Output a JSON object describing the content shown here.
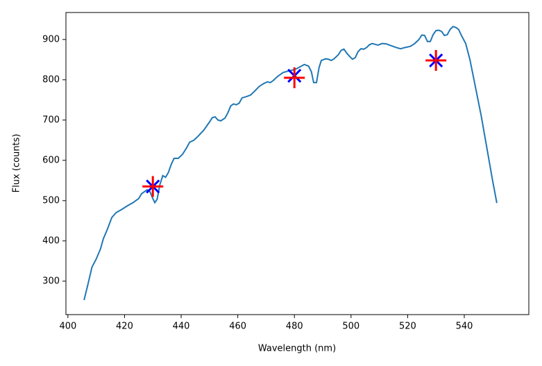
{
  "chart_data": {
    "type": "line",
    "xlabel": "Wavelength (nm)",
    "ylabel": "Flux (counts)",
    "xlim": [
      399.3,
      562.8
    ],
    "ylim": [
      217,
      967
    ],
    "xticks": [
      400,
      420,
      440,
      460,
      480,
      500,
      520,
      540
    ],
    "yticks": [
      300,
      400,
      500,
      600,
      700,
      800,
      900
    ],
    "series": [
      {
        "color": "#1f77b4",
        "x": [
          405.7,
          407,
          408.5,
          410,
          411.5,
          412.5,
          414,
          415.5,
          417,
          419,
          421,
          423,
          425,
          426,
          428,
          429,
          430,
          430.7,
          431.5,
          432.5,
          433.5,
          434.5,
          435.5,
          436.5,
          437.5,
          439,
          440.5,
          442,
          443,
          444.5,
          446,
          448,
          450,
          451,
          452,
          453,
          454,
          455.5,
          456.5,
          457.5,
          458.5,
          459.5,
          460.5,
          461.5,
          463,
          464.5,
          466,
          467.5,
          469,
          470.5,
          471.5,
          472.5,
          474,
          476,
          478,
          480,
          482,
          483.5,
          485,
          486,
          486.8,
          487.8,
          488.7,
          489.5,
          491,
          492,
          493,
          494,
          495.5,
          496.5,
          497.5,
          498.5,
          499.5,
          500.5,
          501.5,
          502.5,
          503.5,
          504.5,
          505.5,
          506.5,
          507.5,
          508.5,
          509.5,
          511,
          512.5,
          514,
          516,
          517.5,
          519,
          521,
          522.5,
          524,
          525,
          526,
          527,
          528,
          529,
          530,
          531,
          532,
          533,
          534,
          535,
          536,
          537,
          538,
          539,
          540.5,
          542,
          544,
          546,
          548,
          550,
          551.5
        ],
        "values": [
          253,
          290,
          335,
          355,
          380,
          405,
          430,
          458,
          470,
          478,
          487,
          495,
          505,
          517,
          527,
          522,
          505,
          495,
          503,
          540,
          562,
          558,
          570,
          590,
          605,
          605,
          615,
          632,
          645,
          650,
          660,
          675,
          695,
          706,
          708,
          700,
          698,
          705,
          718,
          735,
          740,
          738,
          742,
          755,
          758,
          762,
          772,
          783,
          790,
          795,
          793,
          798,
          808,
          818,
          822,
          825,
          832,
          838,
          834,
          820,
          793,
          793,
          830,
          848,
          852,
          851,
          848,
          852,
          862,
          873,
          876,
          866,
          858,
          851,
          855,
          870,
          877,
          876,
          880,
          887,
          890,
          888,
          886,
          890,
          889,
          885,
          880,
          877,
          880,
          883,
          890,
          900,
          911,
          910,
          895,
          895,
          912,
          922,
          923,
          920,
          910,
          912,
          925,
          932,
          930,
          925,
          910,
          890,
          850,
          780,
          710,
          630,
          550,
          494
        ]
      },
      {
        "color": "#0000ff",
        "marker": "x",
        "x": [
          430,
          480,
          530
        ],
        "values": [
          535,
          810,
          848
        ]
      },
      {
        "color": "#ff0000",
        "marker": "+",
        "x": [
          430,
          480,
          530
        ],
        "values": [
          535,
          805,
          848
        ]
      }
    ]
  }
}
